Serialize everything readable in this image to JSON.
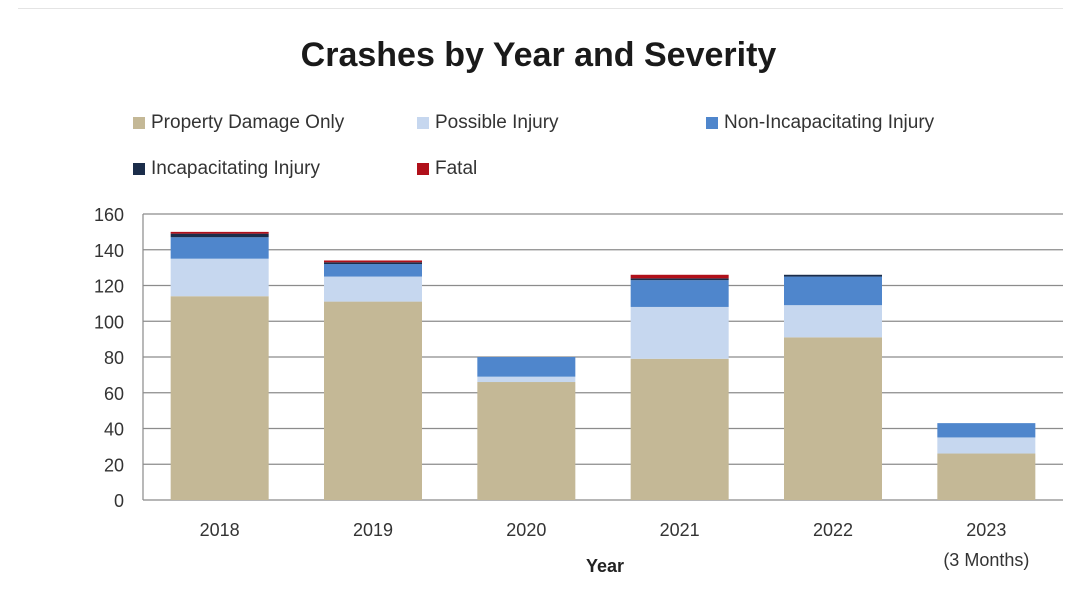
{
  "chart_data": {
    "type": "bar",
    "stacked": true,
    "title": "Crashes by Year and Severity",
    "xlabel": "Year",
    "ylabel": "",
    "categories": [
      "2018",
      "2019",
      "2020",
      "2021",
      "2022",
      "2023\n(3 Months)"
    ],
    "ylim": [
      0,
      160
    ],
    "yticks": [
      0,
      20,
      40,
      60,
      80,
      100,
      120,
      140,
      160
    ],
    "grid": true,
    "legend_position": "top",
    "series": [
      {
        "name": "Property Damage Only",
        "color": "#c4b896",
        "values": [
          114,
          111,
          66,
          79,
          91,
          26
        ]
      },
      {
        "name": "Possible Injury",
        "color": "#c6d7ef",
        "values": [
          21,
          14,
          3,
          29,
          18,
          9
        ]
      },
      {
        "name": "Non-Incapacitating Injury",
        "color": "#4f86cc",
        "values": [
          12,
          7,
          11,
          15,
          16,
          8
        ]
      },
      {
        "name": "Incapacitating Injury",
        "color": "#1b2d4a",
        "values": [
          2,
          1,
          0,
          1,
          1,
          0
        ]
      },
      {
        "name": "Fatal",
        "color": "#b0101a",
        "values": [
          1,
          1,
          0,
          2,
          0,
          0
        ]
      }
    ]
  }
}
